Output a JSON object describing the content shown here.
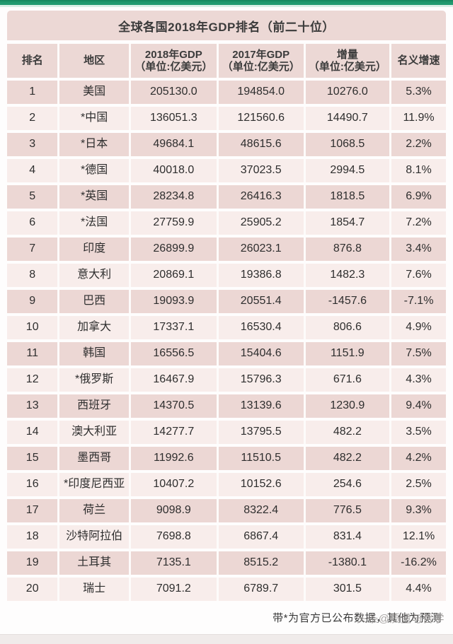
{
  "page": {
    "title": "全球各国2018年GDP排名（前二十位）",
    "footnote": "带*为官方已公布数据，其他为预测",
    "watermark": "头条@质量与哲学"
  },
  "table": {
    "headers": [
      {
        "line1": "排名",
        "line2": ""
      },
      {
        "line1": "地区",
        "line2": ""
      },
      {
        "line1": "2018年GDP",
        "line2": "（单位:亿美元）"
      },
      {
        "line1": "2017年GDP",
        "line2": "（单位:亿美元）"
      },
      {
        "line1": "增量",
        "line2": "（单位:亿美元）"
      },
      {
        "line1": "名义增速",
        "line2": ""
      }
    ]
  },
  "chart_data": {
    "type": "table",
    "title": "全球各国2018年GDP排名（前二十位）",
    "columns": [
      "排名",
      "地区",
      "2018年GDP（单位:亿美元）",
      "2017年GDP（单位:亿美元）",
      "增量（单位:亿美元）",
      "名义增速"
    ],
    "rows": [
      [
        "1",
        "美国",
        "205130.0",
        "194854.0",
        "10276.0",
        "5.3%"
      ],
      [
        "2",
        "*中国",
        "136051.3",
        "121560.6",
        "14490.7",
        "11.9%"
      ],
      [
        "3",
        "*日本",
        "49684.1",
        "48615.6",
        "1068.5",
        "2.2%"
      ],
      [
        "4",
        "*德国",
        "40018.0",
        "37023.5",
        "2994.5",
        "8.1%"
      ],
      [
        "5",
        "*英国",
        "28234.8",
        "26416.3",
        "1818.5",
        "6.9%"
      ],
      [
        "6",
        "*法国",
        "27759.9",
        "25905.2",
        "1854.7",
        "7.2%"
      ],
      [
        "7",
        "印度",
        "26899.9",
        "26023.1",
        "876.8",
        "3.4%"
      ],
      [
        "8",
        "意大利",
        "20869.1",
        "19386.8",
        "1482.3",
        "7.6%"
      ],
      [
        "9",
        "巴西",
        "19093.9",
        "20551.4",
        "-1457.6",
        "-7.1%"
      ],
      [
        "10",
        "加拿大",
        "17337.1",
        "16530.4",
        "806.6",
        "4.9%"
      ],
      [
        "11",
        "韩国",
        "16556.5",
        "15404.6",
        "1151.9",
        "7.5%"
      ],
      [
        "12",
        "*俄罗斯",
        "16467.9",
        "15796.3",
        "671.6",
        "4.3%"
      ],
      [
        "13",
        "西班牙",
        "14370.5",
        "13139.6",
        "1230.9",
        "9.4%"
      ],
      [
        "14",
        "澳大利亚",
        "14277.7",
        "13795.5",
        "482.2",
        "3.5%"
      ],
      [
        "15",
        "墨西哥",
        "11992.6",
        "11510.5",
        "482.2",
        "4.2%"
      ],
      [
        "16",
        "*印度尼西亚",
        "10407.2",
        "10152.6",
        "254.6",
        "2.5%"
      ],
      [
        "17",
        "荷兰",
        "9098.9",
        "8322.4",
        "776.5",
        "9.3%"
      ],
      [
        "18",
        "沙特阿拉伯",
        "7698.8",
        "6867.4",
        "831.4",
        "12.1%"
      ],
      [
        "19",
        "土耳其",
        "7135.1",
        "8515.2",
        "-1380.1",
        "-16.2%"
      ],
      [
        "20",
        "瑞士",
        "7091.2",
        "6789.7",
        "301.5",
        "4.4%"
      ]
    ],
    "footnote": "带*为官方已公布数据，其他为预测",
    "layout": {
      "grid": false,
      "row_shading": "alternating-pink"
    }
  },
  "colors": {
    "accent_bar": "#219a6f",
    "header_bg": "#ecd8d5",
    "row_dark": "#ecd7d4",
    "row_light": "#f8edeb",
    "text": "#2e2e2e",
    "watermark": "#8e8a89"
  }
}
